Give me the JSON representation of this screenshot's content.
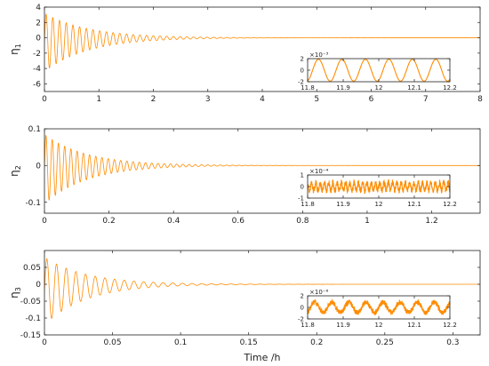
{
  "xlabel": "Time /h",
  "line_color": "#FF8C00",
  "chart_data": [
    {
      "type": "line",
      "ylabel": "η",
      "ylabel_sub": "1",
      "xlim": [
        0,
        8
      ],
      "ylim": [
        -7,
        4
      ],
      "xticks": [
        "0",
        "1",
        "2",
        "3",
        "4",
        "5",
        "6",
        "7",
        "8"
      ],
      "xtick_values": [
        0,
        1,
        2,
        3,
        4,
        5,
        6,
        7,
        8
      ],
      "yticks": [
        "-6",
        "-4",
        "-2",
        "0",
        "2",
        "4"
      ],
      "ytick_values": [
        -6,
        -4,
        -2,
        0,
        2,
        4
      ],
      "signal": {
        "initial_amplitude": 3.8,
        "offset": -0.6,
        "decay_end_x": 3.4,
        "cycles_visible": 65
      },
      "inset": {
        "xlim": [
          11.8,
          12.2
        ],
        "ylim": [
          -2,
          2
        ],
        "xticks": [
          "11.8",
          "11.9",
          "12",
          "12.1",
          "12.2"
        ],
        "xtick_values": [
          11.8,
          11.9,
          12,
          12.1,
          12.2
        ],
        "yticks": [
          "-2",
          "0",
          "2"
        ],
        "ytick_values": [
          -2,
          0,
          2
        ],
        "scale_label": "×10⁻³",
        "signal": {
          "amplitude": 1.9,
          "period": 0.066,
          "noise": 0.0
        }
      }
    },
    {
      "type": "line",
      "ylabel": "η",
      "ylabel_sub": "2",
      "xlim": [
        0,
        1.35
      ],
      "ylim": [
        -0.13,
        0.1
      ],
      "xticks": [
        "0",
        "0.2",
        "0.4",
        "0.6",
        "0.8",
        "1",
        "1.2"
      ],
      "xtick_values": [
        0,
        0.2,
        0.4,
        0.6,
        0.8,
        1.0,
        1.2
      ],
      "yticks": [
        "-0.1",
        "0",
        "0.1"
      ],
      "ytick_values": [
        -0.1,
        0,
        0.1
      ],
      "signal": {
        "initial_amplitude": 0.095,
        "offset": -0.01,
        "decay_end_x": 0.55,
        "cycles_visible": 70
      },
      "inset": {
        "xlim": [
          11.8,
          12.2
        ],
        "ylim": [
          -1,
          1
        ],
        "xticks": [
          "11.8",
          "11.9",
          "12",
          "12.1",
          "12.2"
        ],
        "xtick_values": [
          11.8,
          11.9,
          12,
          12.1,
          12.2
        ],
        "yticks": [
          "-1",
          "0",
          "1"
        ],
        "ytick_values": [
          -1,
          0,
          1
        ],
        "scale_label": "×10⁻⁴",
        "signal": {
          "amplitude": 0.35,
          "period": 0.012,
          "noise": 0.25
        }
      }
    },
    {
      "type": "line",
      "ylabel": "η",
      "ylabel_sub": "3",
      "xlim": [
        0,
        0.32
      ],
      "ylim": [
        -0.15,
        0.1
      ],
      "xticks": [
        "0",
        "0.05",
        "0.1",
        "0.15",
        "0.2",
        "0.25",
        "0.3"
      ],
      "xtick_values": [
        0,
        0.05,
        0.1,
        0.15,
        0.2,
        0.25,
        0.3
      ],
      "yticks": [
        "-0.15",
        "-0.1",
        "-0.05",
        "0",
        "0.05"
      ],
      "ytick_values": [
        -0.15,
        -0.1,
        -0.05,
        0,
        0.05
      ],
      "signal": {
        "initial_amplitude": 0.1,
        "offset": -0.02,
        "decay_end_x": 0.13,
        "cycles_visible": 45
      },
      "inset": {
        "xlim": [
          11.8,
          12.2
        ],
        "ylim": [
          -2,
          2
        ],
        "xticks": [
          "11.8",
          "11.9",
          "12",
          "12.1",
          "12.2"
        ],
        "xtick_values": [
          11.8,
          11.9,
          12,
          12.1,
          12.2
        ],
        "yticks": [
          "-2",
          "0",
          "2"
        ],
        "ytick_values": [
          -2,
          0,
          2
        ],
        "scale_label": "×10⁻⁶",
        "signal": {
          "amplitude": 0.9,
          "period": 0.048,
          "noise": 0.45
        }
      }
    }
  ]
}
